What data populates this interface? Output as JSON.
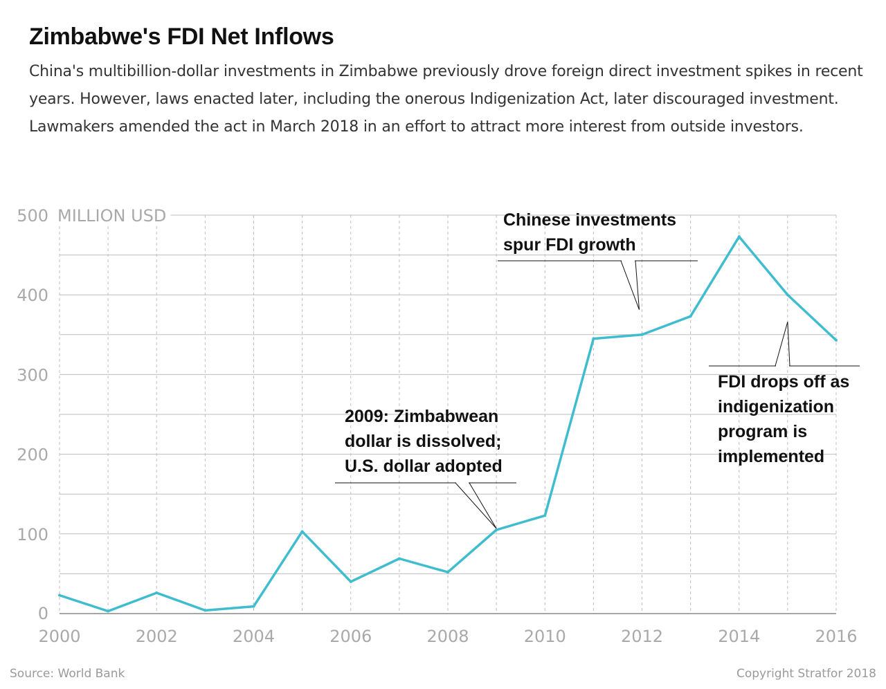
{
  "title": "Zimbabwe's FDI Net Inflows",
  "subtitle": "China's multibillion-dollar investments in Zimbabwe previously drove foreign direct investment spikes in recent years. However, laws enacted later, including the onerous Indigenization Act, later discouraged investment. Lawmakers amended the act in March 2018 in an effort to attract more interest from outside investors.",
  "source": "Source: World Bank",
  "copyright": "Copyright Stratfor 2018",
  "colors": {
    "line": "#40bccf",
    "grid": "#bdbdbd",
    "axis": "#888888",
    "text": "#111111",
    "muted": "#a9a9a9"
  },
  "chart_data": {
    "type": "line",
    "title": "Zimbabwe's FDI Net Inflows",
    "ylabel": "MILLION USD",
    "xlabel": "",
    "x": [
      2000,
      2001,
      2002,
      2003,
      2004,
      2005,
      2006,
      2007,
      2008,
      2009,
      2010,
      2011,
      2012,
      2013,
      2014,
      2015,
      2016
    ],
    "values": [
      23,
      3,
      26,
      4,
      9,
      103,
      40,
      69,
      52,
      105,
      123,
      345,
      350,
      373,
      473,
      400,
      343
    ],
    "xlim": [
      2000,
      2016
    ],
    "ylim": [
      0,
      500
    ],
    "x_ticks": [
      "2000",
      "2002",
      "2004",
      "2006",
      "2008",
      "2010",
      "2012",
      "2014",
      "2016"
    ],
    "y_ticks": [
      "0",
      "100",
      "200",
      "300",
      "400",
      "500"
    ],
    "grid": "horizontal solid every 50, vertical dashed every year",
    "annotations": [
      {
        "lines": [
          "2009: Zimbabwean",
          "dollar is dissolved;",
          "U.S. dollar adopted"
        ],
        "x": 2009,
        "y": 105
      },
      {
        "lines": [
          "Chinese investments",
          "spur FDI growth"
        ],
        "x": 2012,
        "y": 390
      },
      {
        "lines": [
          "FDI drops off as",
          "indigenization",
          "program is",
          "implemented"
        ],
        "x": 2015,
        "y": 380
      }
    ]
  }
}
